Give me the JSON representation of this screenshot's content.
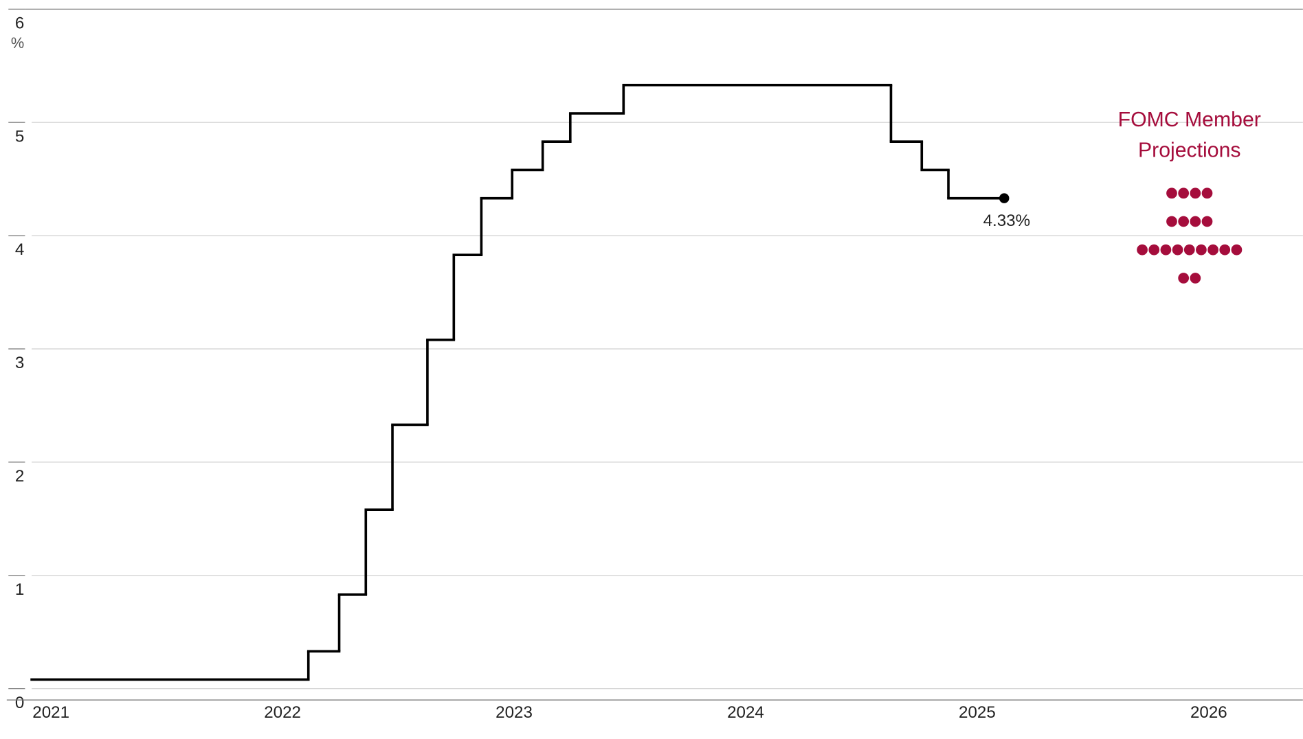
{
  "chart_data": {
    "type": "line",
    "step": "post",
    "xlim": [
      2021,
      2026.49
    ],
    "xticks": [
      2021,
      2022,
      2023,
      2024,
      2025,
      2026
    ],
    "ylim": [
      -0.1,
      6
    ],
    "yticks": [
      0,
      1,
      2,
      3,
      4,
      5,
      6
    ],
    "y_unit": "%",
    "grid": true,
    "series": [
      {
        "color": "#000000",
        "x": [
          2021,
          2022.195,
          2022.328,
          2022.443,
          2022.558,
          2022.709,
          2022.823,
          2022.942,
          2023.075,
          2023.207,
          2023.326,
          2023.556,
          2024.711,
          2024.844,
          2024.959,
          2025.2
        ],
        "values": [
          0.08,
          0.33,
          0.83,
          1.58,
          2.33,
          3.08,
          3.83,
          4.33,
          4.58,
          4.83,
          5.08,
          5.33,
          4.83,
          4.58,
          4.33,
          4.33
        ],
        "value_labels": [
          null,
          null,
          null,
          null,
          null,
          null,
          null,
          null,
          null,
          null,
          null,
          null,
          null,
          null,
          null,
          "4.33%"
        ]
      }
    ],
    "projections": {
      "name": "FOMC Member Projections",
      "color": "#a50d3c",
      "x": [
        2026,
        2026,
        2026,
        2026,
        2026,
        2026,
        2026,
        2026,
        2026,
        2026,
        2026,
        2026,
        2026,
        2026,
        2026,
        2026,
        2026,
        2026,
        2026
      ],
      "values": [
        4.375,
        4.375,
        4.375,
        4.375,
        4.125,
        4.125,
        4.125,
        4.125,
        3.875,
        3.875,
        3.875,
        3.875,
        3.875,
        3.875,
        3.875,
        3.875,
        3.875,
        3.625,
        3.625
      ]
    }
  }
}
